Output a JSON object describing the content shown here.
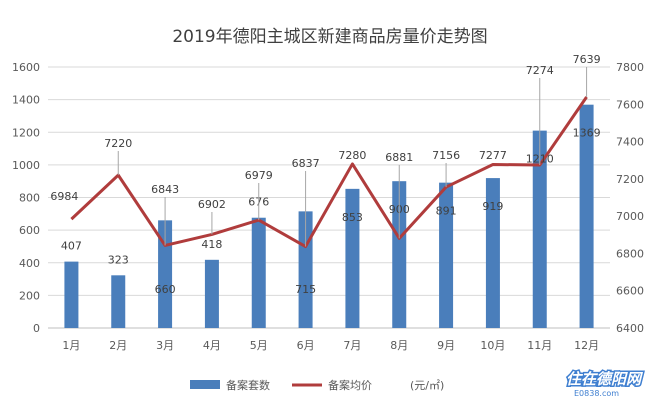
{
  "chart_data": {
    "type": "bar",
    "title": "2019年德阳主城区新建商品房量价走势图",
    "categories": [
      "1月",
      "2月",
      "3月",
      "4月",
      "5月",
      "6月",
      "7月",
      "8月",
      "9月",
      "10月",
      "11月",
      "12月"
    ],
    "series": [
      {
        "name": "备案套数",
        "type": "bar",
        "axis": "left",
        "color": "#4a7ebb",
        "values": [
          407,
          323,
          660,
          418,
          676,
          715,
          853,
          900,
          891,
          919,
          1210,
          1369
        ]
      },
      {
        "name": "备案均价",
        "type": "line",
        "axis": "right",
        "color": "#b03c3c",
        "values": [
          6984,
          7220,
          6843,
          6902,
          6979,
          6837,
          7280,
          6881,
          7156,
          7277,
          7274,
          7639
        ]
      }
    ],
    "y_left": {
      "min": 0,
      "max": 1600,
      "ticks": [
        "0",
        "200",
        "400",
        "600",
        "800",
        "1000",
        "1200",
        "1400",
        "1600"
      ]
    },
    "y_right": {
      "min": 6400,
      "max": 7800,
      "ticks": [
        "6400",
        "6600",
        "6800",
        "7000",
        "7200",
        "7400",
        "7600",
        "7800"
      ]
    },
    "unit_label": "(元/㎡)",
    "grid": true,
    "legend_position": "bottom"
  },
  "watermark": {
    "line1": "住在德阳网",
    "line2": "E0838.com"
  }
}
